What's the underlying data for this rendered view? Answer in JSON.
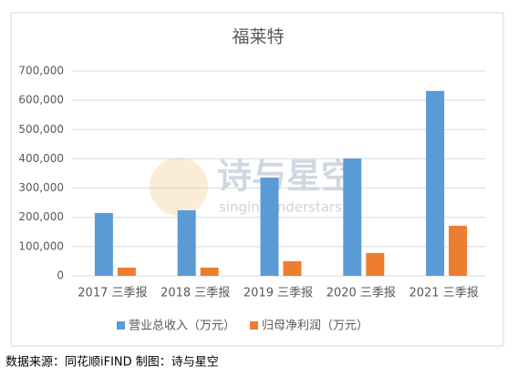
{
  "chart_data": {
    "type": "bar",
    "title": "福莱特",
    "categories": [
      "2017 三季报",
      "2018 三季报",
      "2019 三季报",
      "2020 三季报",
      "2021 三季报"
    ],
    "series": [
      {
        "name": "营业总收入（万元）",
        "color": "#5b9bd5",
        "values": [
          215000,
          224000,
          336000,
          401000,
          632000
        ]
      },
      {
        "name": "归母净利润（万元）",
        "color": "#ed7d31",
        "values": [
          28000,
          28000,
          50000,
          78000,
          171000
        ]
      }
    ],
    "ylim": [
      0,
      700000
    ],
    "yticks": [
      0,
      {
        "value": 100000,
        "label": "100,000"
      },
      {
        "value": 200000,
        "label": "200,000"
      },
      {
        "value": 300000,
        "label": "300,000"
      },
      {
        "value": 400000,
        "label": "400,000"
      },
      {
        "value": 500000,
        "label": "500,000"
      },
      {
        "value": 600000,
        "label": "600,000"
      },
      {
        "value": 700000,
        "label": "700,000"
      }
    ],
    "grid": true,
    "legend": "bottom",
    "watermark": [
      "诗与星空",
      "singingunderstars"
    ]
  },
  "source_note": "数据来源：同花顺iFIND    制图：诗与星空"
}
